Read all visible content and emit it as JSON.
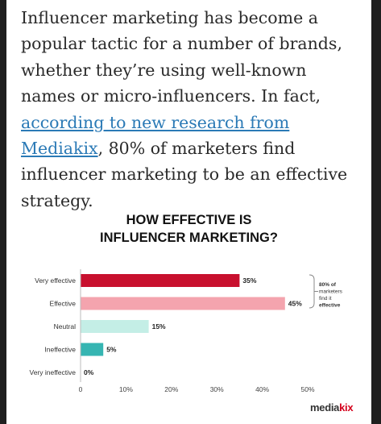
{
  "article": {
    "text_before_link": "Influencer marketing has become a popular tactic for a number of brands, whether they’re using well-known names or micro-influencers. In fact, ",
    "link_text": "according to new research from Mediakix",
    "text_after_link": ", 80% of marketers find influencer marketing to be an effective strategy."
  },
  "chart_data": {
    "type": "bar",
    "orientation": "horizontal",
    "title_line1": "HOW EFFECTIVE IS",
    "title_line2": "INFLUENCER MARKETING?",
    "categories": [
      "Very effective",
      "Effective",
      "Neutral",
      "Ineffective",
      "Very ineffective"
    ],
    "values": [
      35,
      45,
      15,
      5,
      0
    ],
    "value_labels": [
      "35%",
      "45%",
      "15%",
      "5%",
      "0%"
    ],
    "colors": [
      "#c8102e",
      "#f4a4ae",
      "#c4eee6",
      "#36b5b2",
      "#36b5b2"
    ],
    "x_ticks": [
      "0",
      "10%",
      "20%",
      "30%",
      "40%",
      "50%"
    ],
    "xlim": [
      0,
      50
    ],
    "grid": false,
    "annotation": {
      "line1": "80% of",
      "line2": "marketers",
      "line3": "find it",
      "line4": "effective"
    }
  },
  "brand": {
    "logo_main": "media",
    "logo_accent": "kix"
  }
}
